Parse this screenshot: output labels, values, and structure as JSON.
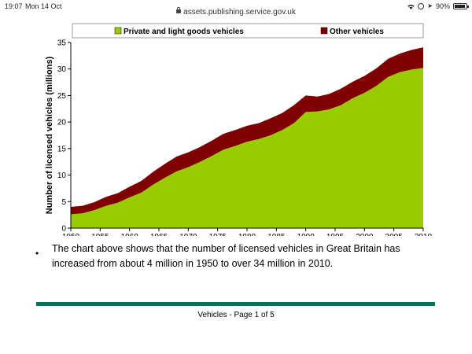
{
  "status_bar": {
    "time": "19:07",
    "date": "Mon 14 Oct",
    "url": "assets.publishing.service.gov.uk",
    "battery": "90%",
    "battery_level": 0.9,
    "icons": [
      "lock-icon",
      "wifi-icon",
      "orientation-lock-icon",
      "location-icon",
      "battery-icon"
    ]
  },
  "chart_data": {
    "type": "area",
    "stacked": true,
    "ylabel": "Number of licensed vehicles (millions)",
    "xlabel": "",
    "x": [
      1950,
      1952,
      1954,
      1956,
      1958,
      1960,
      1962,
      1964,
      1966,
      1968,
      1970,
      1972,
      1974,
      1976,
      1978,
      1980,
      1982,
      1984,
      1986,
      1988,
      1990,
      1992,
      1994,
      1996,
      1998,
      2000,
      2002,
      2004,
      2006,
      2008,
      2010
    ],
    "series": [
      {
        "name": "Private and light goods vehicles",
        "color": "#99cc00",
        "values": [
          2.6,
          2.8,
          3.4,
          4.2,
          4.8,
          5.8,
          6.7,
          8.2,
          9.5,
          10.7,
          11.5,
          12.5,
          13.6,
          14.8,
          15.5,
          16.3,
          16.8,
          17.5,
          18.5,
          19.8,
          21.9,
          22.0,
          22.4,
          23.2,
          24.5,
          25.5,
          26.8,
          28.5,
          29.4,
          29.9,
          30.2
        ]
      },
      {
        "name": "Other vehicles",
        "color": "#800000",
        "values": [
          1.4,
          1.4,
          1.5,
          1.7,
          1.8,
          2.0,
          2.2,
          2.4,
          2.6,
          2.8,
          2.8,
          2.8,
          2.9,
          3.0,
          3.0,
          3.0,
          3.0,
          3.2,
          3.2,
          3.4,
          3.1,
          2.8,
          2.9,
          3.1,
          3.1,
          3.2,
          3.3,
          3.4,
          3.5,
          3.7,
          3.9
        ]
      }
    ],
    "legend": [
      "Private and light goods vehicles",
      "Other vehicles"
    ],
    "legend_position": "top",
    "ylim": [
      0,
      35
    ],
    "yticks": [
      0,
      5,
      10,
      15,
      20,
      25,
      30,
      35
    ],
    "xticks": [
      1950,
      1955,
      1960,
      1965,
      1970,
      1975,
      1980,
      1985,
      1990,
      1995,
      2000,
      2005,
      2010
    ],
    "grid": false
  },
  "document": {
    "bullet": "•",
    "paragraph": "The chart above shows that the number of licensed vehicles in Great Britain has increased from about 4 million in 1950 to over 34 million in 2010.",
    "footer": "Vehicles - Page 1 of 5",
    "rule_color": "#00735a"
  }
}
